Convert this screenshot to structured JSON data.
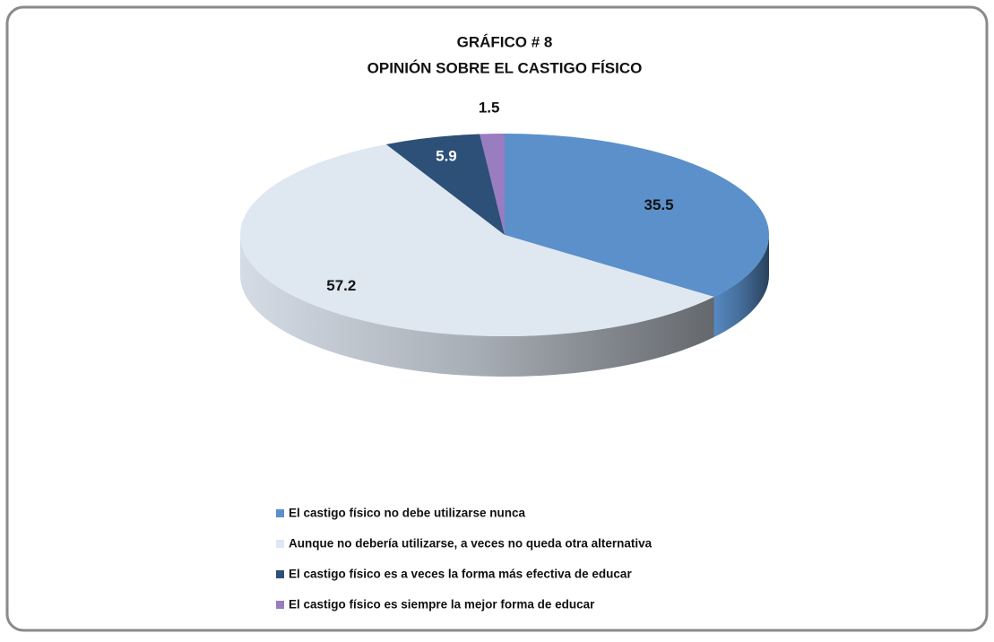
{
  "chart_data": {
    "type": "pie",
    "title": "GRÁFICO # 8",
    "subtitle": "OPINIÓN SOBRE EL CASTIGO FÍSICO",
    "categories": [
      "El castigo físico no debe utilizarse nunca",
      "Aunque no debería utilizarse, a veces no queda otra alternativa",
      "El castigo físico es a veces la forma más efectiva de educar",
      "El castigo físico es siempre la mejor forma de educar"
    ],
    "values": [
      35.5,
      57.2,
      5.9,
      1.5
    ],
    "colors": [
      "#5b90cb",
      "#dfe7f1",
      "#2c5077",
      "#9a7cc0"
    ],
    "label_colors": [
      "#111111",
      "#111111",
      "#ffffff",
      "#111111"
    ],
    "three_d": true,
    "legend": "bottom"
  }
}
